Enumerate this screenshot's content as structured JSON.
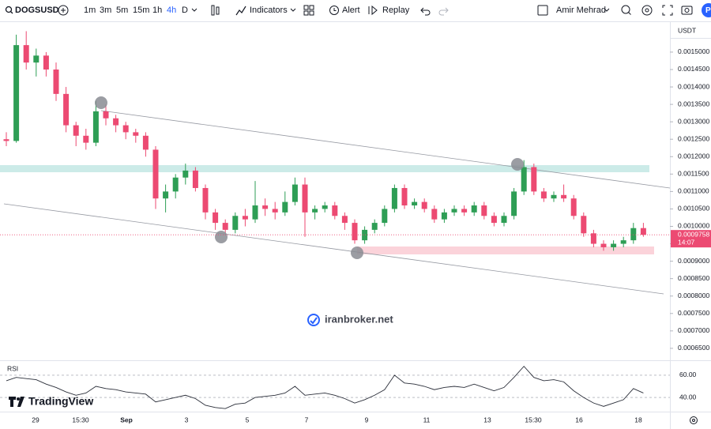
{
  "toolbar": {
    "symbol": "DOGSUSD",
    "intervals": [
      "1m",
      "3m",
      "5m",
      "15m",
      "1h",
      "4h",
      "D"
    ],
    "indicators": "Indicators",
    "alert": "Alert",
    "replay": "Replay",
    "user": "Amir Mehrad",
    "avatar": "P"
  },
  "chart_data": [
    {
      "type": "candlestick",
      "currency": "USDT",
      "up_color": "#2e9e55",
      "down_color": "#ec4a72",
      "ylim": [
        0.000618,
        0.001586
      ],
      "yticks": [
        {
          "value": 0.00065,
          "label": "0.0006500"
        },
        {
          "value": 0.0007,
          "label": "0.0007000"
        },
        {
          "value": 0.00075,
          "label": "0.0007500"
        },
        {
          "value": 0.0008,
          "label": "0.0008000"
        },
        {
          "value": 0.00085,
          "label": "0.0008500"
        },
        {
          "value": 0.0009,
          "label": "0.0009000"
        },
        {
          "value": 0.00095,
          "label": "0.0009500"
        },
        {
          "value": 0.001,
          "label": "0.0010000"
        },
        {
          "value": 0.00105,
          "label": "0.0010500"
        },
        {
          "value": 0.0011,
          "label": "0.0011000"
        },
        {
          "value": 0.00115,
          "label": "0.0011500"
        },
        {
          "value": 0.0012,
          "label": "0.0012000"
        },
        {
          "value": 0.00125,
          "label": "0.0012500"
        },
        {
          "value": 0.0013,
          "label": "0.0013000"
        },
        {
          "value": 0.00135,
          "label": "0.0013500"
        },
        {
          "value": 0.0014,
          "label": "0.0014000"
        },
        {
          "value": 0.00145,
          "label": "0.0014500"
        },
        {
          "value": 0.0015,
          "label": "0.0015000"
        }
      ],
      "candles": [
        [
          0.00125,
          0.00127,
          0.00123,
          0.001245
        ],
        [
          0.001245,
          0.00155,
          0.00124,
          0.00152
        ],
        [
          0.00152,
          0.00156,
          0.00145,
          0.00147
        ],
        [
          0.00147,
          0.00151,
          0.00143,
          0.00149
        ],
        [
          0.00149,
          0.0015,
          0.00143,
          0.00145
        ],
        [
          0.00145,
          0.00147,
          0.00136,
          0.00138
        ],
        [
          0.00138,
          0.0014,
          0.00127,
          0.00129
        ],
        [
          0.00129,
          0.0013,
          0.00123,
          0.00126
        ],
        [
          0.00126,
          0.00128,
          0.00122,
          0.00124
        ],
        [
          0.00124,
          0.00136,
          0.00123,
          0.00133
        ],
        [
          0.00133,
          0.00135,
          0.00129,
          0.00131
        ],
        [
          0.00131,
          0.00132,
          0.00127,
          0.00129
        ],
        [
          0.00129,
          0.0013,
          0.00125,
          0.00127
        ],
        [
          0.00127,
          0.00128,
          0.00124,
          0.00126
        ],
        [
          0.00126,
          0.00127,
          0.0012,
          0.00122
        ],
        [
          0.00122,
          0.00123,
          0.00105,
          0.00108
        ],
        [
          0.00108,
          0.00112,
          0.00104,
          0.0011
        ],
        [
          0.0011,
          0.00115,
          0.00108,
          0.00114
        ],
        [
          0.00114,
          0.00118,
          0.00112,
          0.00116
        ],
        [
          0.00116,
          0.00117,
          0.0011,
          0.00111
        ],
        [
          0.00111,
          0.00112,
          0.00102,
          0.00104
        ],
        [
          0.00104,
          0.00105,
          0.00099,
          0.00101
        ],
        [
          0.00101,
          0.00102,
          0.00098,
          0.00099
        ],
        [
          0.00099,
          0.00104,
          0.00098,
          0.00103
        ],
        [
          0.00103,
          0.00105,
          0.001,
          0.00102
        ],
        [
          0.00102,
          0.00113,
          0.00101,
          0.00106
        ],
        [
          0.00106,
          0.00108,
          0.00103,
          0.00105
        ],
        [
          0.00105,
          0.00107,
          0.00102,
          0.00104
        ],
        [
          0.00104,
          0.0011,
          0.00103,
          0.00107
        ],
        [
          0.00107,
          0.00114,
          0.00106,
          0.00112
        ],
        [
          0.00112,
          0.00114,
          0.00097,
          0.00104
        ],
        [
          0.00104,
          0.00106,
          0.00102,
          0.00105
        ],
        [
          0.00105,
          0.00107,
          0.00104,
          0.00106
        ],
        [
          0.00106,
          0.00107,
          0.00102,
          0.00103
        ],
        [
          0.00103,
          0.00104,
          0.00099,
          0.00101
        ],
        [
          0.00101,
          0.00102,
          0.00095,
          0.00096
        ],
        [
          0.00096,
          0.001,
          0.00095,
          0.00099
        ],
        [
          0.00099,
          0.00102,
          0.00098,
          0.00101
        ],
        [
          0.00101,
          0.00106,
          0.001,
          0.00105
        ],
        [
          0.00105,
          0.00112,
          0.00104,
          0.00111
        ],
        [
          0.00111,
          0.00112,
          0.00105,
          0.00106
        ],
        [
          0.00106,
          0.00108,
          0.00105,
          0.00107
        ],
        [
          0.00107,
          0.00108,
          0.00104,
          0.00105
        ],
        [
          0.00105,
          0.00106,
          0.00101,
          0.00102
        ],
        [
          0.00102,
          0.00105,
          0.00101,
          0.00104
        ],
        [
          0.00104,
          0.00106,
          0.00103,
          0.00105
        ],
        [
          0.00105,
          0.00106,
          0.00103,
          0.00104
        ],
        [
          0.00104,
          0.00107,
          0.00103,
          0.00106
        ],
        [
          0.00106,
          0.00107,
          0.00102,
          0.00103
        ],
        [
          0.00103,
          0.00104,
          0.001,
          0.00101
        ],
        [
          0.00101,
          0.00104,
          0.001,
          0.00103
        ],
        [
          0.00103,
          0.00111,
          0.00102,
          0.0011
        ],
        [
          0.0011,
          0.00119,
          0.00109,
          0.00117
        ],
        [
          0.00117,
          0.00118,
          0.00109,
          0.0011
        ],
        [
          0.0011,
          0.00111,
          0.00107,
          0.00108
        ],
        [
          0.00108,
          0.0011,
          0.00107,
          0.00109
        ],
        [
          0.00109,
          0.00112,
          0.00107,
          0.00108
        ],
        [
          0.00108,
          0.00109,
          0.00102,
          0.00103
        ],
        [
          0.00103,
          0.00104,
          0.00097,
          0.00098
        ],
        [
          0.00098,
          0.00099,
          0.00094,
          0.00095
        ],
        [
          0.00095,
          0.00096,
          0.00093,
          0.00094
        ],
        [
          0.00094,
          0.00096,
          0.00093,
          0.00095
        ],
        [
          0.00095,
          0.00097,
          0.00094,
          0.00096
        ],
        [
          0.00096,
          0.00101,
          0.00095,
          0.000995
        ],
        [
          0.000995,
          0.00101,
          0.00097,
          0.0009758
        ]
      ],
      "last_price": 0.0009758,
      "countdown": "14:07",
      "x_labels": [
        "29",
        "15:30",
        "Sep",
        "3",
        "5",
        "7",
        "9",
        "11",
        "13",
        "15:30",
        "16",
        "18"
      ],
      "watermark": "iranbroker.net"
    },
    {
      "type": "line",
      "title": "RSI",
      "color": "#2a2e39",
      "ylim": [
        28,
        72
      ],
      "yticks": [
        {
          "value": 40,
          "label": "40.00"
        },
        {
          "value": 60,
          "label": "60.00"
        }
      ],
      "values": [
        55,
        58,
        57,
        56,
        52,
        49,
        45,
        42,
        44,
        50,
        48,
        47,
        45,
        44,
        43,
        36,
        38,
        40,
        42,
        39,
        33,
        31,
        30,
        34,
        35,
        40,
        41,
        42,
        44,
        50,
        42,
        43,
        44,
        42,
        39,
        35,
        38,
        42,
        47,
        60,
        53,
        52,
        50,
        47,
        49,
        50,
        49,
        52,
        49,
        46,
        49,
        58,
        68,
        58,
        55,
        56,
        54,
        46,
        40,
        35,
        32,
        35,
        38,
        48,
        44
      ]
    }
  ],
  "branding": "TradingView"
}
